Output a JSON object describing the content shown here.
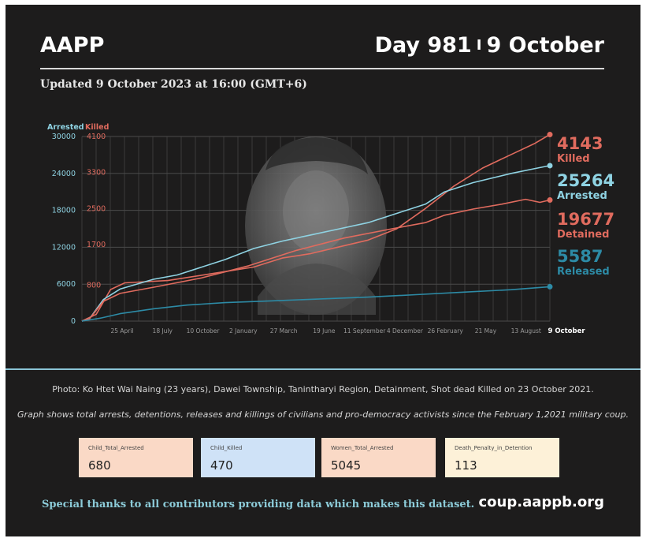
{
  "header": {
    "brand": "AAPP",
    "day": "Day 981",
    "separator": "I",
    "date": "9 October",
    "updated": "Updated 9 October 2023 at 16:00 (GMT+6)"
  },
  "chart_data": {
    "type": "line",
    "title": "",
    "xlabel": "",
    "x_ticks": [
      "25 April",
      "18 July",
      "10 October",
      "2 January",
      "27 March",
      "19 June",
      "11 September",
      "4 December",
      "26 February",
      "21 May",
      "13 August",
      "9 October"
    ],
    "x_range": [
      0,
      981
    ],
    "left_axis": {
      "label": "Arrested",
      "ticks": [
        0,
        6000,
        12000,
        18000,
        24000,
        30000
      ],
      "range": [
        0,
        30000
      ]
    },
    "right_axis": {
      "label": "Killed",
      "ticks": [
        "4100",
        "3300",
        "2500",
        "1700",
        "800"
      ],
      "range": [
        0,
        4100
      ]
    },
    "grid": true,
    "series": [
      {
        "name": "Killed",
        "axis": "right",
        "color": "#e06b5e",
        "final_value": "4143",
        "points": [
          [
            0,
            0
          ],
          [
            30,
            150
          ],
          [
            60,
            700
          ],
          [
            90,
            850
          ],
          [
            180,
            900
          ],
          [
            270,
            1050
          ],
          [
            360,
            1200
          ],
          [
            420,
            1400
          ],
          [
            480,
            1500
          ],
          [
            540,
            1650
          ],
          [
            600,
            1800
          ],
          [
            660,
            2050
          ],
          [
            720,
            2500
          ],
          [
            780,
            3000
          ],
          [
            840,
            3400
          ],
          [
            900,
            3700
          ],
          [
            950,
            3950
          ],
          [
            981,
            4143
          ]
        ]
      },
      {
        "name": "Arrested",
        "axis": "left",
        "color": "#8fd3e3",
        "final_value": "25264",
        "points": [
          [
            0,
            0
          ],
          [
            15,
            300
          ],
          [
            45,
            3500
          ],
          [
            80,
            5200
          ],
          [
            150,
            6800
          ],
          [
            200,
            7500
          ],
          [
            300,
            10000
          ],
          [
            360,
            11800
          ],
          [
            420,
            13000
          ],
          [
            480,
            14000
          ],
          [
            540,
            15000
          ],
          [
            600,
            16000
          ],
          [
            660,
            17500
          ],
          [
            720,
            19000
          ],
          [
            760,
            21000
          ],
          [
            820,
            22500
          ],
          [
            900,
            24000
          ],
          [
            950,
            24800
          ],
          [
            981,
            25264
          ]
        ]
      },
      {
        "name": "Detained",
        "axis": "left",
        "color": "#e06b5e",
        "final_value": "19677",
        "points": [
          [
            0,
            0
          ],
          [
            15,
            300
          ],
          [
            45,
            3200
          ],
          [
            80,
            4500
          ],
          [
            150,
            5500
          ],
          [
            250,
            7000
          ],
          [
            350,
            9000
          ],
          [
            450,
            11500
          ],
          [
            550,
            13500
          ],
          [
            650,
            15000
          ],
          [
            720,
            16000
          ],
          [
            760,
            17200
          ],
          [
            820,
            18200
          ],
          [
            880,
            19000
          ],
          [
            930,
            19800
          ],
          [
            960,
            19300
          ],
          [
            981,
            19677
          ]
        ]
      },
      {
        "name": "Released",
        "axis": "left",
        "color": "#2d8ba6",
        "final_value": "5587",
        "points": [
          [
            0,
            0
          ],
          [
            40,
            500
          ],
          [
            80,
            1200
          ],
          [
            150,
            2000
          ],
          [
            220,
            2600
          ],
          [
            300,
            3000
          ],
          [
            400,
            3300
          ],
          [
            500,
            3600
          ],
          [
            600,
            3900
          ],
          [
            700,
            4300
          ],
          [
            800,
            4700
          ],
          [
            900,
            5100
          ],
          [
            981,
            5587
          ]
        ]
      }
    ]
  },
  "captions": {
    "photo": "Photo: Ko Htet Wai Naing (23 years), Dawei Township, Tanintharyi Region, Detainment, Shot dead Killed on 23 October 2021.",
    "graph": "Graph shows total arrests, detentions, releases and killings of civilians and pro-democracy activists since the February 1,2021 military coup."
  },
  "stats": [
    {
      "label": "Child_Total_Arrested",
      "value": "680",
      "color": "#fad9c6"
    },
    {
      "label": "Child_Killed",
      "value": "470",
      "color": "#cfe2f7"
    },
    {
      "label": "Women_Total_Arrested",
      "value": "5045",
      "color": "#fad9c6"
    },
    {
      "label": "Death_Penalty_in_Detention",
      "value": "113",
      "color": "#fdf1d8"
    }
  ],
  "footer": {
    "thanks": "Special thanks to all contributors providing data which makes this dataset.",
    "site": "coup.aappb.org"
  },
  "colors": {
    "background": "#1d1c1c",
    "divider": "#8bc4d6",
    "killed": "#e06b5e",
    "arrested": "#8fd3e3",
    "released": "#2d8ba6"
  }
}
